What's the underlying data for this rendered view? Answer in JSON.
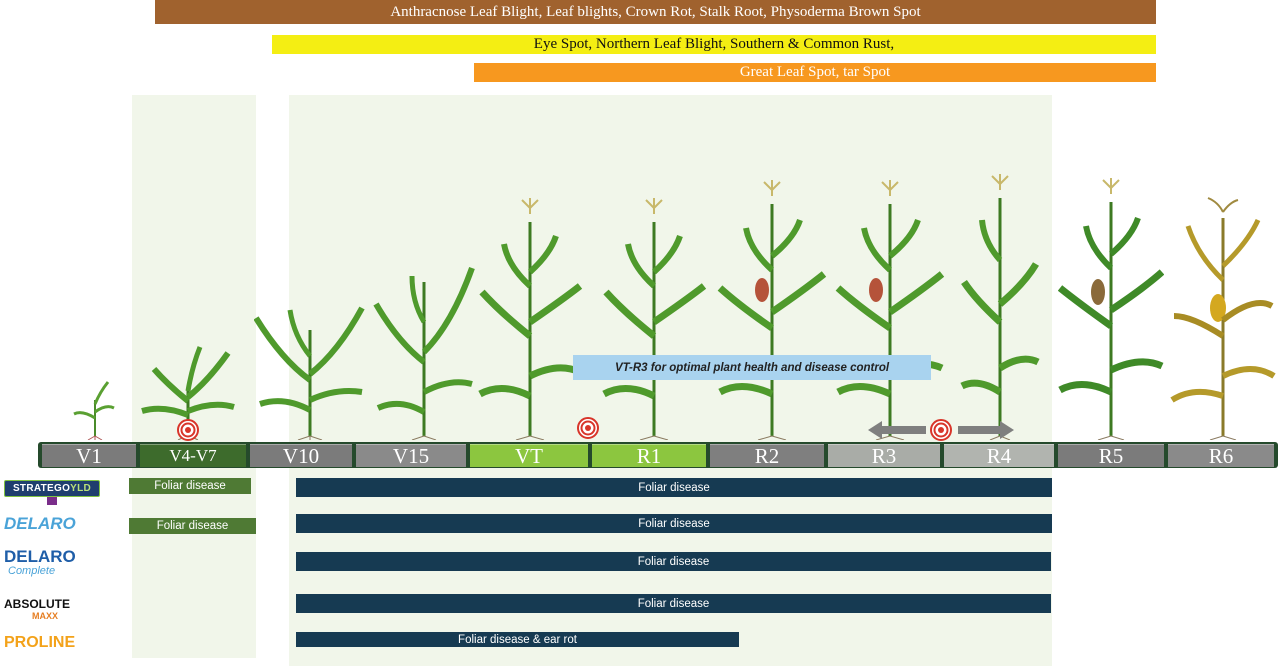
{
  "disease_bands": [
    {
      "label": "Anthracnose Leaf Blight, Leaf blights, Crown Rot, Stalk Root, Physoderma Brown Spot",
      "color": "#a0622e",
      "text_color": "#ffffff"
    },
    {
      "label": "Eye Spot, Northern Leaf Blight, Southern & Common Rust,",
      "color": "#f4ee13",
      "text_color": "#111111"
    },
    {
      "label": "Great Leaf Spot, tar Spot",
      "color": "#f7981f",
      "text_color": "#ffffff"
    }
  ],
  "stages": [
    "V1",
    "V4-V7",
    "V10",
    "V15",
    "VT",
    "R1",
    "R2",
    "R3",
    "R4",
    "R5",
    "R6"
  ],
  "callout": "VT-R3 for optimal plant health and disease control",
  "products": [
    {
      "name": "STRATEGO YLD",
      "name_main": "STRATEGO",
      "name_suffix": "YLD",
      "bars": [
        "Foliar disease",
        "Foliar disease"
      ]
    },
    {
      "name": "DELARO",
      "bars": [
        "Foliar disease",
        "Foliar disease"
      ]
    },
    {
      "name": "DELARO",
      "sub": "Complete",
      "bars": [
        "Foliar disease"
      ]
    },
    {
      "name": "ABSOLUTE",
      "sub": "MAXX",
      "bars": [
        "Foliar disease"
      ]
    },
    {
      "name": "PROLINE",
      "bars": [
        "Foliar disease & ear rot"
      ]
    }
  ],
  "icons": [
    "target-icon",
    "arrow-left-icon",
    "arrow-right-icon",
    "corn-plant-icon"
  ],
  "colors": {
    "early_bar": "#4f7a34",
    "main_bar": "#163a52",
    "stage_gray": "#7b7b7b",
    "stage_dark_green": "#3d6b2c",
    "stage_light_green": "#8cc63f",
    "window": "#f1f6ea"
  }
}
